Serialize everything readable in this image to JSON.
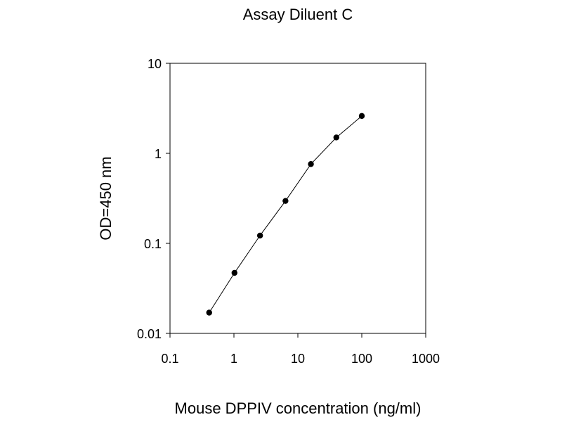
{
  "chart_data": {
    "type": "scatter",
    "title": "Assay Diluent C",
    "xlabel": "Mouse DPPIV concentration (ng/ml)",
    "ylabel": "OD=450 nm",
    "xscale": "log",
    "yscale": "log",
    "xlim": [
      0.1,
      1000
    ],
    "ylim": [
      0.01,
      10
    ],
    "xticks": [
      "0.1",
      "1",
      "10",
      "100",
      "1000"
    ],
    "yticks": [
      "0.01",
      "0.1",
      "1",
      "10"
    ],
    "grid": false,
    "legend": "none",
    "line_connects_points": true,
    "series": [
      {
        "x": [
          0.41,
          1.02,
          2.56,
          6.4,
          16,
          40,
          100
        ],
        "y": [
          0.017,
          0.047,
          0.122,
          0.296,
          0.76,
          1.5,
          2.6
        ]
      }
    ],
    "colors": {
      "marker": "#000000",
      "line": "#000000",
      "axis": "#000000"
    }
  }
}
